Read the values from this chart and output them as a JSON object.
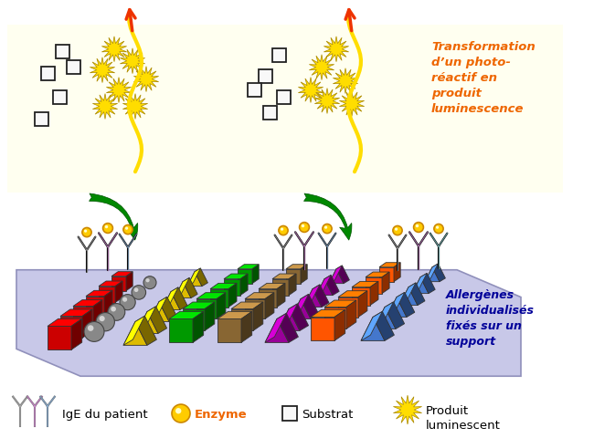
{
  "bg_color": "#ffffff",
  "yellow_box_color": "#fffff0",
  "platform_color": "#c8c8e8",
  "platform_edge_color": "#9090bb",
  "enzyme_color": "#ffcc00",
  "enzyme_edge": "#cc8800",
  "arrow_green": "#008800",
  "arrow_orange": "#ee4400",
  "arrow_yellow_wave": "#ffdd00",
  "text_transformation": "Transformation\nd’un photo-\nréactif en\nproduit\nluminescence",
  "text_allergenes": "Allergènes\nindividualisés\nfixés sur un\nsupport",
  "allergen_rows": [
    {
      "color": "#cc0000",
      "dark": "#880000",
      "light": "#ff4444",
      "shape": "cube"
    },
    {
      "color": "#888888",
      "dark": "#444444",
      "light": "#bbbbbb",
      "shape": "sphere"
    },
    {
      "color": "#ddbb00",
      "dark": "#996600",
      "light": "#ffee44",
      "shape": "triangle"
    },
    {
      "color": "#009900",
      "dark": "#005500",
      "light": "#44cc44",
      "shape": "cube"
    },
    {
      "color": "#886633",
      "dark": "#553300",
      "light": "#bb9955",
      "shape": "cube"
    },
    {
      "color": "#990099",
      "dark": "#550055",
      "light": "#cc44cc",
      "shape": "triangle"
    },
    {
      "color": "#ff5500",
      "dark": "#992200",
      "light": "#ff8844",
      "shape": "cube"
    },
    {
      "color": "#4477cc",
      "dark": "#223388",
      "light": "#88aaee",
      "shape": "triangle"
    }
  ],
  "ige_colors": [
    "#aaaaaa",
    "#cc88cc",
    "#88aacc"
  ],
  "legend_ige_colors": [
    "#aaaaaa",
    "#cc88cc",
    "#88aacc"
  ]
}
